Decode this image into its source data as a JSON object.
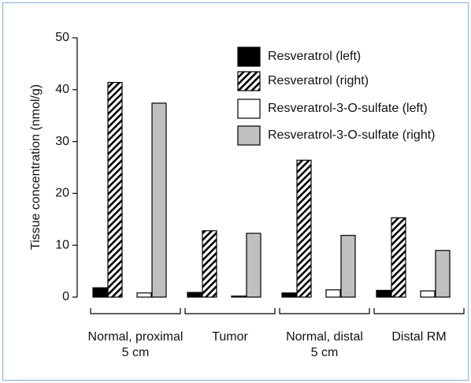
{
  "chart_data": {
    "type": "bar",
    "y_label": "Tissue concentration (nmol/g)",
    "categories": [
      "Normal, proximal\n5 cm",
      "Tumor",
      "Normal, distal\n5 cm",
      "Distal RM"
    ],
    "series": [
      {
        "name": "Resveratrol (left)",
        "color": "#000000",
        "hatch": false,
        "values": [
          1.8,
          0.9,
          0.8,
          1.3
        ]
      },
      {
        "name": "Resveratrol (right)",
        "color": "#000000",
        "hatch": true,
        "values": [
          41.4,
          12.8,
          26.4,
          15.3
        ]
      },
      {
        "name": "Resveratrol-3-O-sulfate (left)",
        "color": "#ffffff",
        "hatch": false,
        "values": [
          0.8,
          0.2,
          1.4,
          1.2
        ]
      },
      {
        "name": "Resveratrol-3-O-sulfate (right)",
        "color": "#c0c0c0",
        "hatch": false,
        "values": [
          37.4,
          12.3,
          11.9,
          9.0
        ]
      }
    ],
    "ylim": [
      0,
      50
    ],
    "yticks": [
      0,
      10,
      20,
      30,
      40,
      50
    ]
  }
}
